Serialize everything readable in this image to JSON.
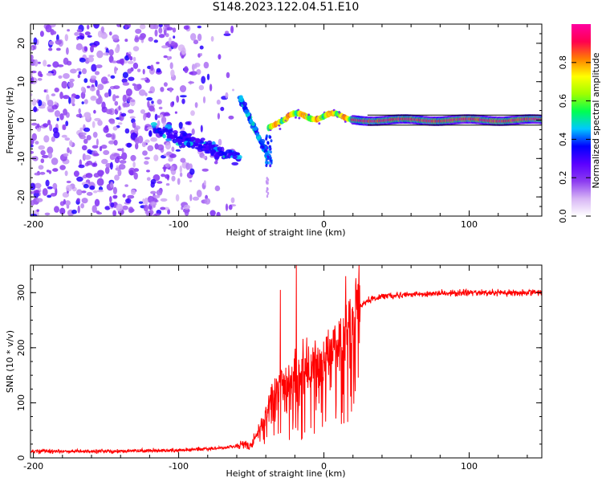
{
  "title": "S148.2023.122.04.51.E10",
  "chart_data": [
    {
      "type": "heatmap",
      "title": "",
      "xlabel": "Height of straight line (km)",
      "ylabel": "Frequency (Hz)",
      "xlim": [
        -202,
        150
      ],
      "ylim": [
        -25,
        25
      ],
      "xticks": [
        -200,
        -100,
        0,
        100
      ],
      "yticks": [
        -20,
        -10,
        0,
        10,
        20
      ],
      "colorbar": {
        "label": "Normalized spectral amplitude",
        "range": [
          0,
          1
        ],
        "ticks": [
          "0.0",
          "0.2",
          "0.4",
          "0.6",
          "0.8"
        ],
        "colormap": [
          "#ffffff",
          "#d7b5f5",
          "#8c3cf0",
          "#5a00ff",
          "#0000ff",
          "#00c8ff",
          "#00ff50",
          "#a0ff00",
          "#ffff00",
          "#ff8000",
          "#ff0050",
          "#ff00a0"
        ]
      },
      "regions": [
        {
          "x": [
            -202,
            -60
          ],
          "freq": [
            -25,
            25
          ],
          "level": 0.1,
          "desc": "scattered weak noise"
        },
        {
          "x": [
            -118,
            -58
          ],
          "freq": [
            -10,
            0
          ],
          "level": 0.2,
          "desc": "descending band"
        },
        {
          "x": [
            -58,
            -40
          ],
          "freq": [
            -12,
            7
          ],
          "level": 0.3,
          "desc": "steep transition"
        },
        {
          "x": [
            -38,
            20
          ],
          "freq": [
            -2,
            3
          ],
          "level": 0.6,
          "desc": "fluctuating line near 0 Hz"
        },
        {
          "x": [
            20,
            150
          ],
          "freq": [
            -1,
            1
          ],
          "level": 0.9,
          "desc": "stable line at 0 Hz"
        }
      ]
    },
    {
      "type": "line",
      "title": "",
      "xlabel": "Height of straight line (km)",
      "ylabel": "SNR (10 * v/v)",
      "xlim": [
        -202,
        150
      ],
      "ylim": [
        0,
        350
      ],
      "xticks": [
        -200,
        -100,
        0,
        100
      ],
      "yticks": [
        0,
        100,
        200,
        300
      ],
      "color": "#ff0000",
      "series": [
        {
          "x": [
            -202,
            -150,
            -100,
            -70,
            -50,
            -45,
            -40,
            -35,
            -30,
            -25,
            -20,
            -15,
            -10,
            -5,
            0,
            5,
            10,
            15,
            20,
            25,
            30,
            40,
            60,
            80,
            100,
            120,
            150
          ],
          "y": [
            12,
            12,
            14,
            18,
            25,
            50,
            80,
            120,
            130,
            135,
            150,
            160,
            170,
            180,
            190,
            200,
            205,
            220,
            250,
            275,
            285,
            293,
            297,
            298,
            300,
            300,
            300
          ]
        }
      ],
      "peaks": [
        {
          "x": -30,
          "y": 305
        },
        {
          "x": -19,
          "y": 350
        },
        {
          "x": 15,
          "y": 330
        }
      ]
    }
  ]
}
